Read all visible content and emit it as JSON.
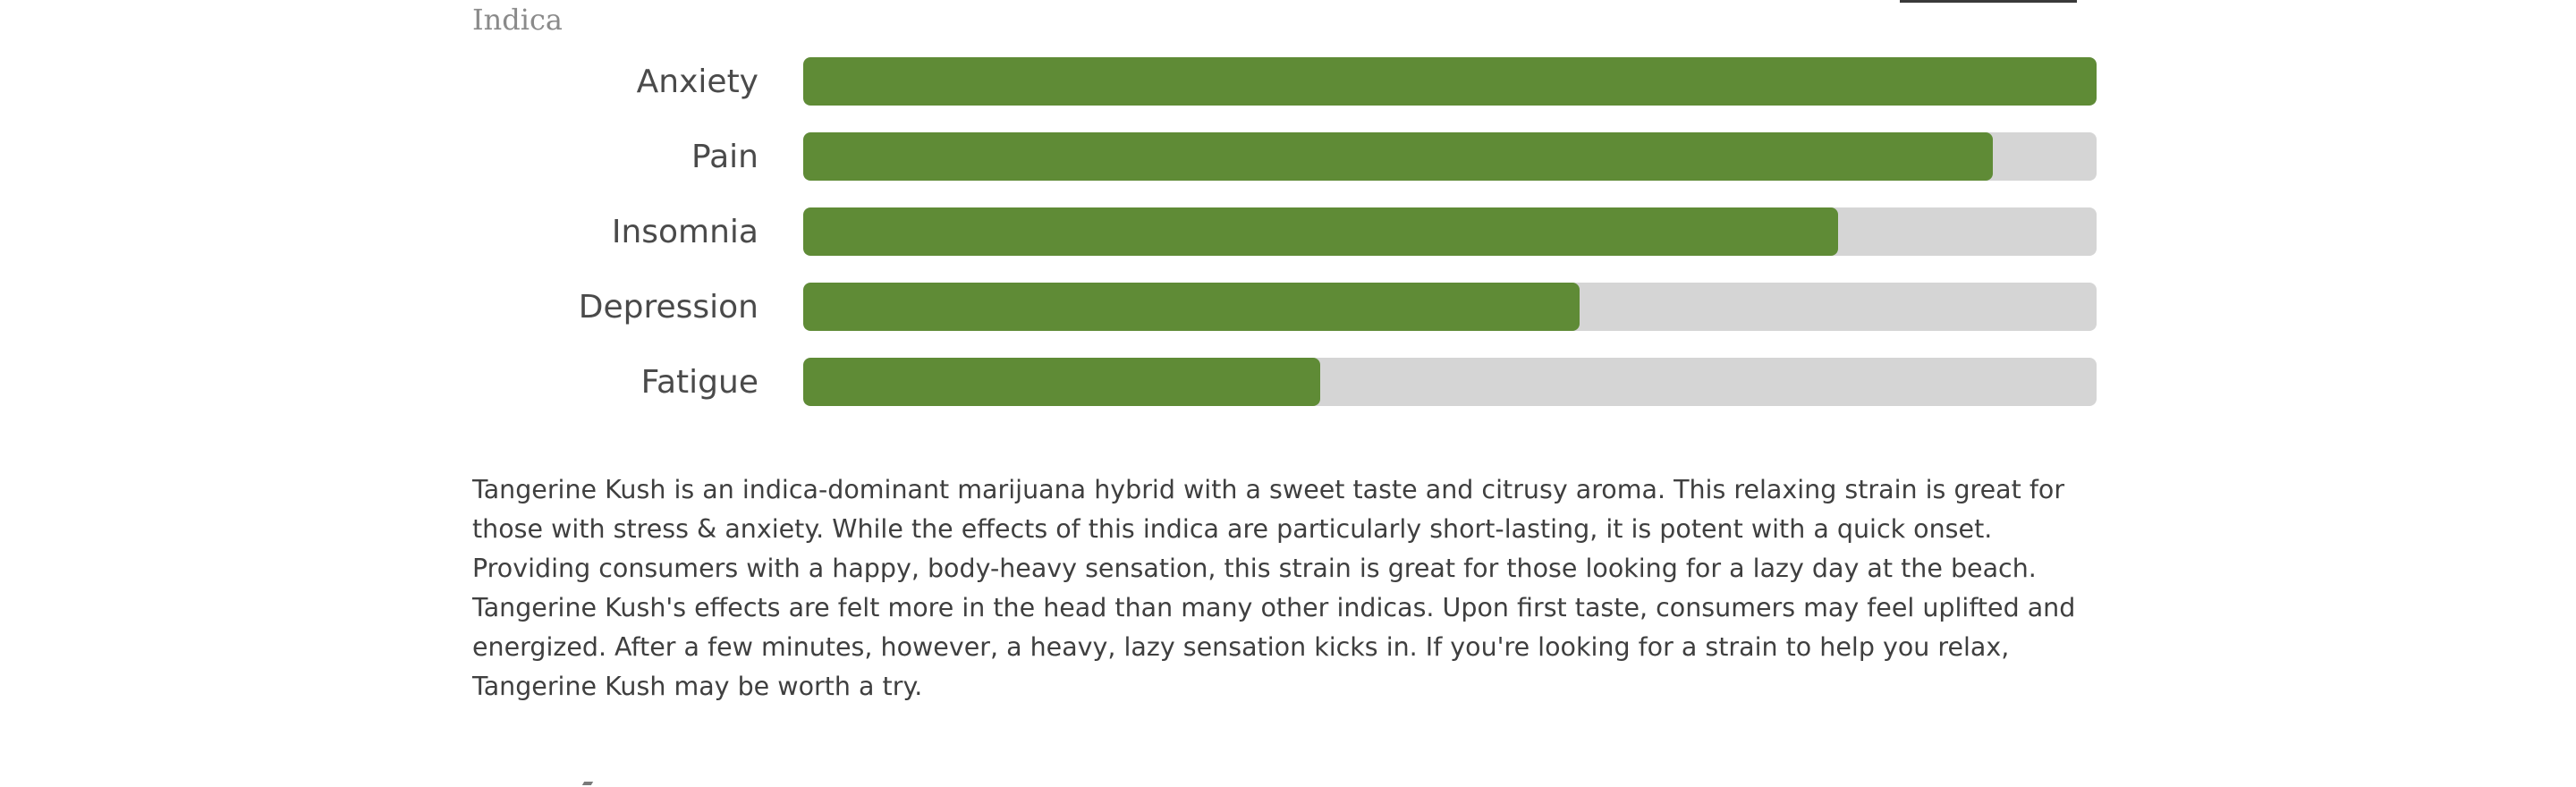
{
  "strain": {
    "type_label": "Indica"
  },
  "medical_effects": [
    {
      "label": "Anxiety",
      "value_percent": 100
    },
    {
      "label": "Pain",
      "value_percent": 92
    },
    {
      "label": "Insomnia",
      "value_percent": 80
    },
    {
      "label": "Depression",
      "value_percent": 60
    },
    {
      "label": "Fatigue",
      "value_percent": 40
    }
  ],
  "colors": {
    "bar_fill": "#5f8b36",
    "bar_track": "#d5d5d5",
    "label_text": "#4a4a4a",
    "body_text": "#3f3f3f",
    "type_label": "#8a8a8a"
  },
  "description": "Tangerine Kush is an indica-dominant marijuana hybrid with a sweet taste and citrusy aroma. This relaxing strain is great for those with stress & anxiety. While the effects of this indica are particularly short-lasting, it is potent with a quick onset. Providing consumers with a happy, body-heavy sensation, this strain is great for those looking for a lazy day at the beach. Tangerine Kush's effects are felt more in the head than many other indicas. Upon first taste, consumers may feel uplifted and energized. After a few minutes, however, a heavy, lazy sensation kicks in. If you're looking for a strain to help you relax, Tangerine Kush may be worth a try."
}
